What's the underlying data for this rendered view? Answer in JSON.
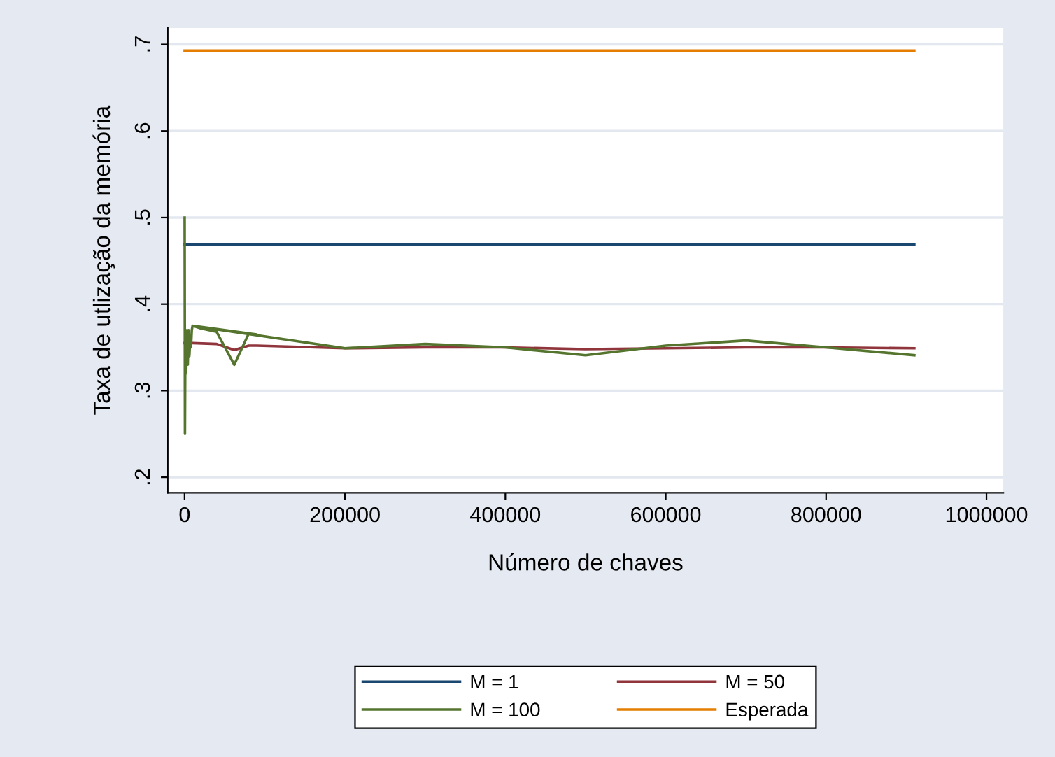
{
  "chart_data": {
    "type": "line",
    "xlabel": "Número de chaves",
    "ylabel": "Taxa de utlização da memória",
    "xlim": [
      -21000,
      1021000
    ],
    "xticks": [
      0,
      200000,
      400000,
      600000,
      800000,
      1000000
    ],
    "ylim": [
      0.182,
      0.719
    ],
    "yticks": [
      {
        "value": 0.2,
        "label": ".2"
      },
      {
        "value": 0.3,
        "label": ".3"
      },
      {
        "value": 0.4,
        "label": ".4"
      },
      {
        "value": 0.5,
        "label": ".5"
      },
      {
        "value": 0.6,
        "label": ".6"
      },
      {
        "value": 0.7,
        "label": ".7"
      }
    ],
    "grid": "y",
    "legend": "bottom",
    "marker": "none",
    "line_style": "solid",
    "series": [
      {
        "name": "M = 1",
        "color": "#1a476f",
        "x": [
          100,
          910000
        ],
        "values": [
          0.469,
          0.469
        ]
      },
      {
        "name": "M = 50",
        "color": "#90353b",
        "x": [
          100,
          10000,
          40000,
          62000,
          80000,
          90000,
          200000,
          300000,
          400000,
          500000,
          600000,
          700000,
          800000,
          910000
        ],
        "values": [
          0.355,
          0.355,
          0.354,
          0.347,
          0.352,
          0.352,
          0.349,
          0.35,
          0.35,
          0.348,
          0.349,
          0.35,
          0.35,
          0.349
        ]
      },
      {
        "name": "M = 100",
        "color": "#55752f",
        "x": [
          100,
          500,
          1000,
          2000,
          3000,
          4000,
          5000,
          6000,
          7000,
          8000,
          9000,
          10000,
          20000,
          40000,
          62000,
          80000,
          90000,
          10000,
          200000,
          300000,
          400000,
          500000,
          600000,
          700000,
          800000,
          910000
        ],
        "values": [
          0.5,
          0.25,
          0.36,
          0.32,
          0.37,
          0.33,
          0.37,
          0.34,
          0.36,
          0.35,
          0.37,
          0.375,
          0.372,
          0.368,
          0.33,
          0.366,
          0.365,
          0.375,
          0.349,
          0.354,
          0.35,
          0.341,
          0.352,
          0.358,
          0.35,
          0.341
        ]
      },
      {
        "name": "Esperada",
        "color": "#e37e00",
        "x": [
          100,
          910000
        ],
        "values": [
          0.693,
          0.693
        ]
      }
    ]
  }
}
